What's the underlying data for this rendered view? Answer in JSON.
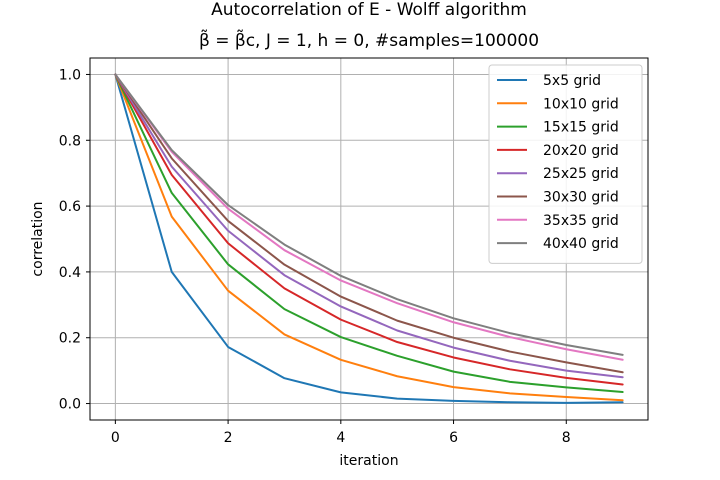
{
  "chart_data": {
    "type": "line",
    "title": "Autocorrelation of E - Wolff algorithm",
    "subtitle": "β̃ = β̃c, J = 1, h = 0, #samples=100000",
    "xlabel": "iteration",
    "ylabel": "correlation",
    "xlim": [
      -0.45,
      9.45
    ],
    "ylim": [
      -0.05,
      1.05
    ],
    "xticks": [
      0,
      2,
      4,
      6,
      8
    ],
    "yticks": [
      0.0,
      0.2,
      0.4,
      0.6,
      0.8,
      1.0
    ],
    "xtick_labels": [
      "0",
      "2",
      "4",
      "6",
      "8"
    ],
    "ytick_labels": [
      "0.0",
      "0.2",
      "0.4",
      "0.6",
      "0.8",
      "1.0"
    ],
    "grid": true,
    "legend_position": "top-right",
    "x": [
      0,
      1,
      2,
      3,
      4,
      5,
      6,
      7,
      8,
      9
    ],
    "series": [
      {
        "name": "5x5 grid",
        "color": "#1f77b4",
        "values": [
          1.0,
          0.4,
          0.172,
          0.077,
          0.034,
          0.015,
          0.008,
          0.004,
          0.002,
          0.004
        ]
      },
      {
        "name": "10x10 grid",
        "color": "#ff7f0e",
        "values": [
          1.0,
          0.568,
          0.343,
          0.21,
          0.133,
          0.083,
          0.05,
          0.031,
          0.02,
          0.01
        ]
      },
      {
        "name": "15x15 grid",
        "color": "#2ca02c",
        "values": [
          1.0,
          0.64,
          0.423,
          0.287,
          0.202,
          0.145,
          0.097,
          0.066,
          0.049,
          0.035
        ]
      },
      {
        "name": "20x20 grid",
        "color": "#d62728",
        "values": [
          1.0,
          0.695,
          0.487,
          0.35,
          0.255,
          0.187,
          0.14,
          0.104,
          0.078,
          0.058
        ]
      },
      {
        "name": "25x25 grid",
        "color": "#9467bd",
        "values": [
          1.0,
          0.72,
          0.525,
          0.39,
          0.295,
          0.222,
          0.17,
          0.13,
          0.1,
          0.08
        ]
      },
      {
        "name": "30x30 grid",
        "color": "#8c564b",
        "values": [
          1.0,
          0.745,
          0.555,
          0.422,
          0.325,
          0.252,
          0.2,
          0.158,
          0.125,
          0.095
        ]
      },
      {
        "name": "35x35 grid",
        "color": "#e377c2",
        "values": [
          1.0,
          0.765,
          0.592,
          0.466,
          0.374,
          0.305,
          0.247,
          0.202,
          0.165,
          0.133
        ]
      },
      {
        "name": "40x40 grid",
        "color": "#7f7f7f",
        "values": [
          1.0,
          0.77,
          0.603,
          0.483,
          0.388,
          0.317,
          0.259,
          0.214,
          0.178,
          0.148
        ]
      }
    ]
  }
}
